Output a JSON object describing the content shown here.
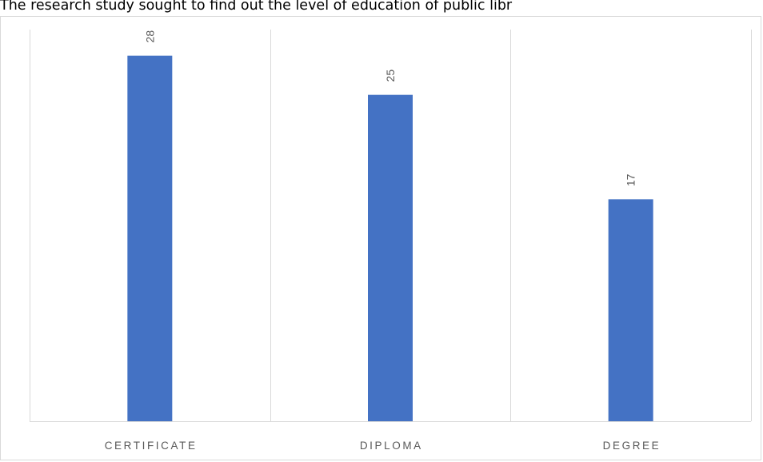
{
  "document": {
    "text_line": "The research study sought to find out the level of education of public libr"
  },
  "chart_data": {
    "type": "bar",
    "categories": [
      "CERTIFICATE",
      "DIPLOMA",
      "DEGREE"
    ],
    "values": [
      28,
      25,
      17
    ],
    "title": "",
    "xlabel": "",
    "ylabel": "",
    "ylim": [
      0,
      30
    ],
    "bar_color": "#4472c4",
    "gridline_color": "#d9d9d9",
    "label_color": "#595959",
    "data_labels": true,
    "data_label_orientation": "vertical",
    "grid": "vertical separators between categories",
    "legend": "none"
  }
}
